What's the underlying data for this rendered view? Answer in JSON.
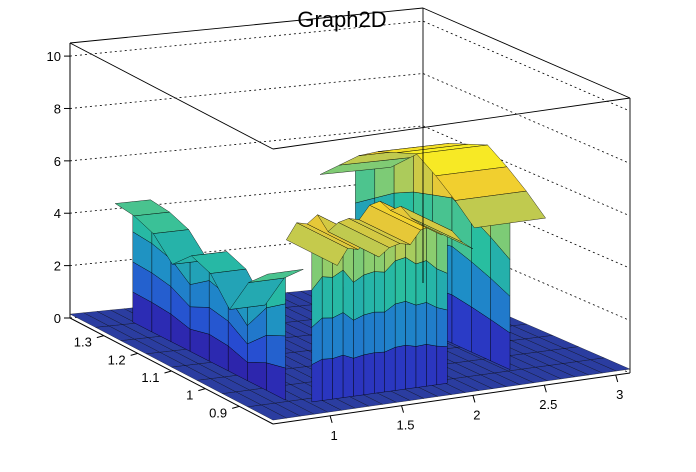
{
  "chart_data": {
    "type": "surface3d",
    "title": "Graph2D",
    "xlabel": "",
    "ylabel": "",
    "zlabel": "",
    "xlim": [
      0.6,
      3.1
    ],
    "ylim": [
      0.8,
      1.4
    ],
    "zlim": [
      0,
      10.5
    ],
    "grid": true,
    "colormap": "viridis",
    "x_ticks": [
      "1",
      "1.5",
      "2",
      "2.5",
      "3"
    ],
    "y_ticks": [
      "0.9",
      "1",
      "1.1",
      "1.2",
      "1.3"
    ],
    "z_ticks": [
      "0",
      "2",
      "4",
      "6",
      "8",
      "10"
    ],
    "walls": [
      {
        "name": "left",
        "x_range": [
          0.8,
          1.05
        ],
        "y_range": [
          0.9,
          1.35
        ],
        "z_profile": [
          4.6,
          4.5,
          4.2,
          3.4,
          4.1,
          3.8,
          2.8,
          4.2,
          4.9
        ]
      },
      {
        "name": "front",
        "x_range": [
          1.05,
          2.0
        ],
        "y_range": [
          0.8,
          0.95
        ],
        "z_profile": [
          5.7,
          6.3,
          6.2,
          6.5,
          5.8,
          6.1,
          6.2,
          6.1,
          6.6,
          6.7,
          6.3,
          6.4,
          5.9,
          5.6
        ]
      },
      {
        "name": "right",
        "x_range": [
          2.25,
          2.75
        ],
        "y_range": [
          0.9,
          1.35
        ],
        "z_profile": [
          4.9,
          5.6,
          6.3,
          6.8,
          7.1,
          7.4,
          6.9,
          6.3,
          5.6
        ]
      }
    ]
  }
}
